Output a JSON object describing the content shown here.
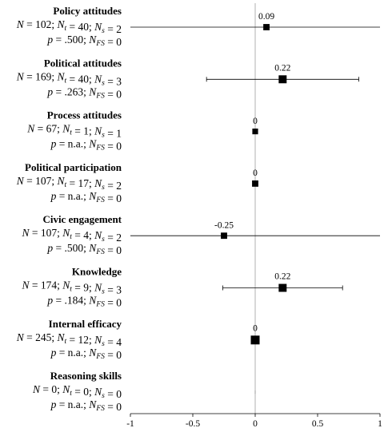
{
  "chart_data": {
    "type": "scatter",
    "subtype": "forest-plot",
    "xlim": [
      -1,
      1
    ],
    "x_ticks": [
      "-1",
      "-0.5",
      "0",
      "0.5",
      "1"
    ],
    "reference_line_x": 0,
    "grid": false,
    "rows": [
      {
        "label": "Policy attitudes",
        "stat1": "N = 102; Nt = 40; Ns = 2",
        "stat2": "p = .500; NFS = 0",
        "value": 0.09,
        "value_label": "0.09",
        "ci": [
          -1.0,
          1.0
        ],
        "weight": 0.55
      },
      {
        "label": "Political attitudes",
        "stat1": "N = 169; Nt = 40; Ns = 3",
        "stat2": "p = .263; NFS = 0",
        "value": 0.22,
        "value_label": "0.22",
        "ci": [
          -0.39,
          0.83
        ],
        "weight": 0.85
      },
      {
        "label": "Process attitudes",
        "stat1": "N = 67; Nt = 1; Ns = 1",
        "stat2": "p = n.a.; NFS = 0",
        "value": 0.0,
        "value_label": "0",
        "ci": null,
        "weight": 0.45
      },
      {
        "label": "Political participation",
        "stat1": "N = 107; Nt = 17; Ns = 2",
        "stat2": "p = n.a.; NFS = 0",
        "value": 0.0,
        "value_label": "0",
        "ci": null,
        "weight": 0.55
      },
      {
        "label": "Civic engagement",
        "stat1": "N = 107; Nt = 4; Ns = 2",
        "stat2": "p = .500; NFS = 0",
        "value": -0.25,
        "value_label": "-0.25",
        "ci": [
          -1.0,
          1.0
        ],
        "weight": 0.55
      },
      {
        "label": "Knowledge",
        "stat1": "N = 174; Nt = 9; Ns = 3",
        "stat2": "p = .184; NFS = 0",
        "value": 0.22,
        "value_label": "0.22",
        "ci": [
          -0.26,
          0.7
        ],
        "weight": 0.85
      },
      {
        "label": "Internal efficacy",
        "stat1": "N = 245; Nt = 12; Ns = 4",
        "stat2": "p = n.a.; NFS = 0",
        "value": 0.0,
        "value_label": "0",
        "ci": null,
        "weight": 1.0
      },
      {
        "label": "Reasoning skills",
        "stat1": "N = 0; Nt = 0; Ns = 0",
        "stat2": "p = n.a.; NFS = 0",
        "value": null,
        "value_label": "",
        "ci": null,
        "weight": 0
      }
    ]
  }
}
